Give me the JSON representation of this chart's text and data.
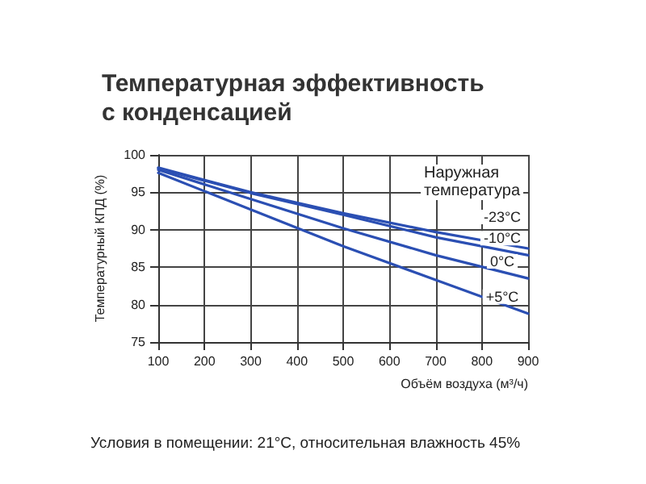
{
  "chart_data": {
    "type": "line",
    "title": "Температурная эффективность\nс конденсацией",
    "xlabel": "Объём воздуха (м³/ч)",
    "ylabel": "Температурный КПД (%)",
    "legend_title": "Наружная\nтемпература",
    "annotations": [
      "Условия в помещении: 21°C, относительная влажность 45%"
    ],
    "x": [
      100,
      300,
      500,
      700,
      900
    ],
    "series": [
      {
        "name": "-23°C",
        "color": "#2b4fb3",
        "values": [
          98.3,
          95.0,
          92.2,
          89.7,
          87.5
        ]
      },
      {
        "name": "-10°C",
        "color": "#2b4fb3",
        "values": [
          98.2,
          94.9,
          92.0,
          89.0,
          86.6
        ]
      },
      {
        "name": "0°C",
        "color": "#2b4fb3",
        "values": [
          98.0,
          94.1,
          90.2,
          86.6,
          83.5
        ]
      },
      {
        "name": "+5°C",
        "color": "#2b4fb3",
        "values": [
          97.6,
          92.7,
          87.8,
          83.3,
          78.8
        ]
      }
    ],
    "xlim": [
      100,
      900
    ],
    "xticks": [
      100,
      200,
      300,
      400,
      500,
      600,
      700,
      800,
      900
    ],
    "ylim": [
      75,
      100
    ],
    "yticks": [
      75,
      80,
      85,
      90,
      95,
      100
    ],
    "grid": true,
    "marker": "none",
    "line_style": "solid"
  }
}
